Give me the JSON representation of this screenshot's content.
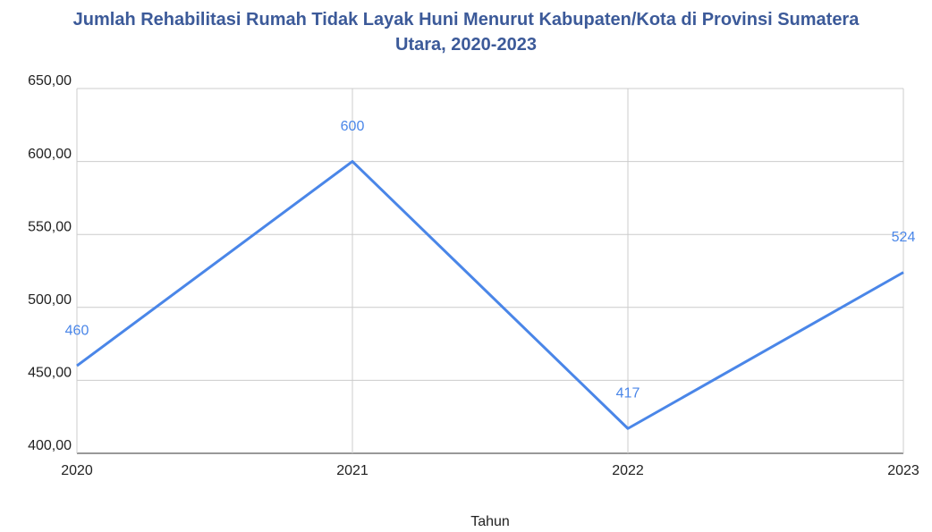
{
  "chart_data": {
    "type": "line",
    "title": "Jumlah Rehabilitasi Rumah Tidak Layak Huni Menurut Kabupaten/Kota di Provinsi Sumatera Utara, 2020-2023",
    "x_label": "Tahun",
    "x": [
      2020,
      2021,
      2022,
      2023
    ],
    "xlim": [
      2020,
      2023
    ],
    "xticks": [
      2020,
      2021,
      2022,
      2023
    ],
    "series": [
      {
        "name": "Jumlah",
        "color": "#4a86e8",
        "values": [
          460,
          600,
          417,
          524
        ]
      }
    ],
    "ylim": [
      400,
      650
    ],
    "yticks": [
      {
        "value": 400,
        "label": "400,00"
      },
      {
        "value": 450,
        "label": "450,00"
      },
      {
        "value": 500,
        "label": "500,00"
      },
      {
        "value": 550,
        "label": "550,00"
      },
      {
        "value": 600,
        "label": "600,00"
      },
      {
        "value": 650,
        "label": "650,00"
      }
    ],
    "grid": true
  }
}
